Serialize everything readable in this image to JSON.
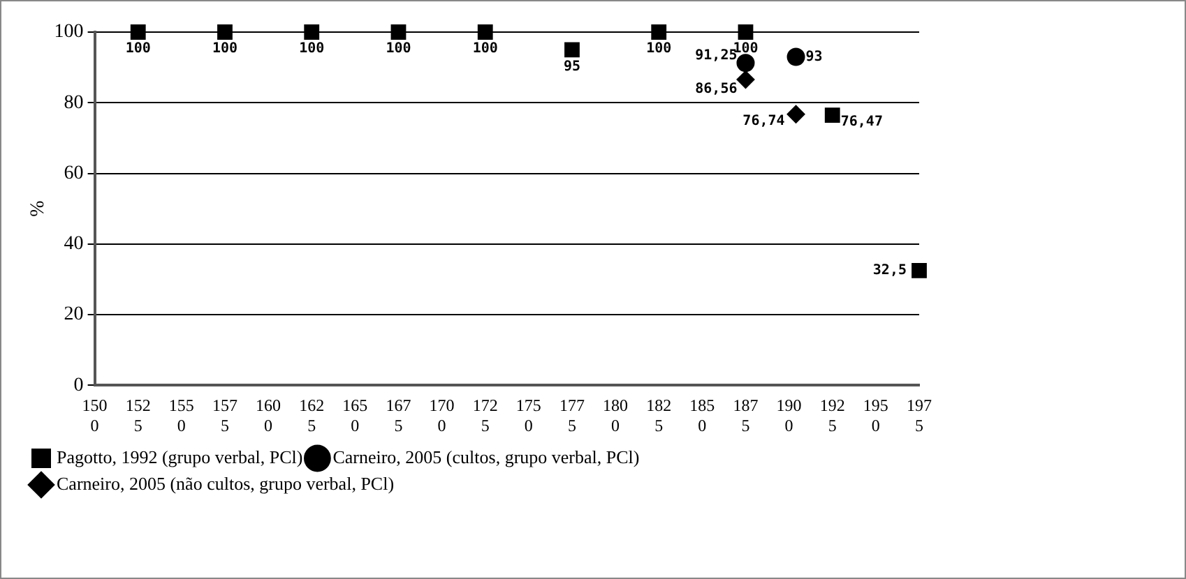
{
  "chart_data": {
    "type": "scatter",
    "ylabel": "%",
    "xlim": [
      1500,
      1975
    ],
    "xticks": [
      1500,
      1525,
      1550,
      1575,
      1600,
      1625,
      1650,
      1675,
      1700,
      1725,
      1750,
      1775,
      1800,
      1825,
      1850,
      1875,
      1900,
      1925,
      1950,
      1975
    ],
    "ylim": [
      0,
      100
    ],
    "yticks": [
      0,
      20,
      40,
      60,
      80,
      100
    ],
    "grid": "y",
    "legend": "bottom",
    "series": [
      {
        "name": "Pagotto, 1992 (grupo verbal, PCl)",
        "color": "#000000",
        "marker": "square",
        "x": [
          1525,
          1575,
          1625,
          1675,
          1725,
          1775,
          1825,
          1875,
          1925,
          1975
        ],
        "values": [
          100,
          100,
          100,
          100,
          100,
          95,
          100,
          100,
          76.47,
          32.5
        ],
        "value_labels": [
          "100",
          "100",
          "100",
          "100",
          "100",
          "95",
          "100",
          "100",
          "76,47",
          "32,5"
        ]
      },
      {
        "name": "Carneiro, 2005 (cultos, grupo verbal, PCl)",
        "color": "#000000",
        "marker": "circle",
        "x": [
          1875,
          1904
        ],
        "values": [
          91.25,
          93
        ],
        "value_labels": [
          "91,25",
          "93"
        ]
      },
      {
        "name": "Carneiro, 2005 (não cultos, grupo verbal, PCl)",
        "color": "#000000",
        "marker": "diamond",
        "x": [
          1875,
          1904
        ],
        "values": [
          86.56,
          76.74
        ],
        "value_labels": [
          "86,56",
          "76,74"
        ]
      }
    ]
  }
}
